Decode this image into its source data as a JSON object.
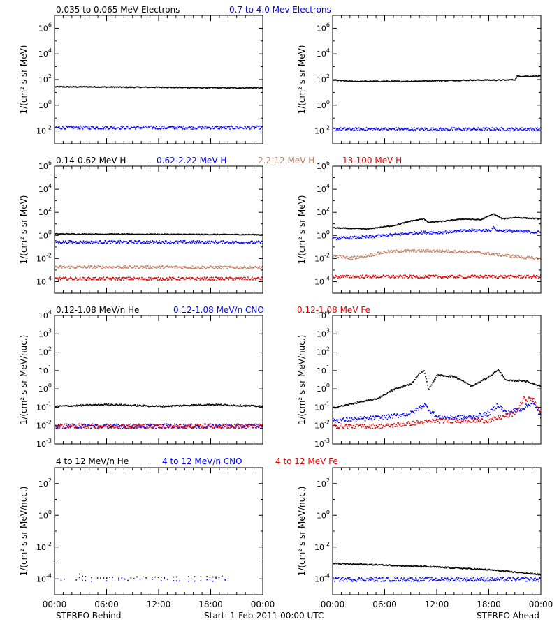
{
  "colors": {
    "black": "#000000",
    "blue": "#0000ff",
    "tan": "#c07d60",
    "red": "#e00000"
  },
  "x_ticks": [
    "00:00",
    "06:00",
    "12:00",
    "18:00",
    "00:00"
  ],
  "footer": {
    "left": "STEREO Behind",
    "center": "Start:  1-Feb-2011 00:00 UTC",
    "right": "STEREO Ahead"
  },
  "rows": [
    {
      "legend": [
        {
          "text": "0.035 to 0.065 MeV Electrons",
          "color": "black"
        },
        {
          "text": "0.7 to 4.0 Mev Electrons",
          "color": "blue"
        }
      ]
    },
    {
      "legend": [
        {
          "text": "0.14-0.62 MeV H",
          "color": "black"
        },
        {
          "text": "0.62-2.22 MeV H",
          "color": "blue"
        },
        {
          "text": "2.2-12 MeV H",
          "color": "tan"
        },
        {
          "text": "13-100 MeV H",
          "color": "red"
        }
      ]
    },
    {
      "legend": [
        {
          "text": "0.12-1.08 MeV/n He",
          "color": "black"
        },
        {
          "text": "0.12-1.08 MeV/n CNO",
          "color": "blue"
        },
        {
          "text": "0.12-1.08 MeV Fe",
          "color": "red"
        }
      ]
    },
    {
      "legend": [
        {
          "text": "4 to 12 MeV/n He",
          "color": "black"
        },
        {
          "text": "4 to 12 MeV/n CNO",
          "color": "blue"
        },
        {
          "text": "4 to 12 MeV Fe",
          "color": "red"
        }
      ]
    }
  ],
  "chart_data": [
    {
      "type": "scatter",
      "panel": "row1-behind",
      "ylabel": "1/(cm² s sr MeV)",
      "yscale": "log",
      "ylim_exp": [
        -3,
        7
      ],
      "ytick_exps": [
        -2,
        0,
        2,
        4,
        6
      ],
      "xlim": [
        0,
        24
      ],
      "series": [
        {
          "name": "0.035 to 0.065 MeV Electrons",
          "color": "black",
          "points": [
            [
              0,
              30
            ],
            [
              4,
              30
            ],
            [
              8,
              28
            ],
            [
              12,
              28
            ],
            [
              16,
              26
            ],
            [
              20,
              25
            ],
            [
              24,
              25
            ]
          ]
        },
        {
          "name": "0.7 to 4.0 Mev Electrons",
          "color": "blue",
          "points": [
            [
              0,
              0.02
            ],
            [
              6,
              0.02
            ],
            [
              12,
              0.02
            ],
            [
              18,
              0.02
            ],
            [
              24,
              0.02
            ]
          ]
        }
      ]
    },
    {
      "type": "scatter",
      "panel": "row1-ahead",
      "ylabel": "1/(cm² s sr MeV)",
      "yscale": "log",
      "ylim_exp": [
        -3,
        7
      ],
      "ytick_exps": [
        -2,
        0,
        2,
        4,
        6
      ],
      "xlim": [
        0,
        24
      ],
      "series": [
        {
          "name": "0.035 to 0.065 MeV Electrons",
          "color": "black",
          "points": [
            [
              0,
              100
            ],
            [
              2,
              80
            ],
            [
              4,
              80
            ],
            [
              8,
              80
            ],
            [
              12,
              90
            ],
            [
              16,
              100
            ],
            [
              20,
              100
            ],
            [
              21,
              110
            ],
            [
              21.2,
              200
            ],
            [
              24,
              200
            ]
          ]
        },
        {
          "name": "0.7 to 4.0 Mev Electrons",
          "color": "blue",
          "points": [
            [
              0,
              0.015
            ],
            [
              6,
              0.015
            ],
            [
              12,
              0.015
            ],
            [
              18,
              0.015
            ],
            [
              24,
              0.015
            ]
          ]
        }
      ]
    },
    {
      "type": "scatter",
      "panel": "row2-behind",
      "ylabel": "1/(cm² s sr MeV)",
      "yscale": "log",
      "ylim_exp": [
        -5,
        6
      ],
      "ytick_exps": [
        -4,
        -2,
        0,
        2,
        4,
        6
      ],
      "xlim": [
        0,
        24
      ],
      "series": [
        {
          "name": "0.14-0.62 MeV H",
          "color": "black",
          "points": [
            [
              0,
              1.5
            ],
            [
              12,
              1.4
            ],
            [
              24,
              1.3
            ]
          ]
        },
        {
          "name": "0.62-2.22 MeV H",
          "color": "blue",
          "points": [
            [
              0,
              0.3
            ],
            [
              12,
              0.3
            ],
            [
              24,
              0.28
            ]
          ]
        },
        {
          "name": "2.2-12 MeV H",
          "color": "tan",
          "points": [
            [
              0,
              0.002
            ],
            [
              12,
              0.002
            ],
            [
              24,
              0.0018
            ]
          ]
        },
        {
          "name": "13-100 MeV H",
          "color": "red",
          "points": [
            [
              0,
              0.0002
            ],
            [
              12,
              0.0002
            ],
            [
              24,
              0.0002
            ]
          ]
        }
      ]
    },
    {
      "type": "scatter",
      "panel": "row2-ahead",
      "ylabel": "1/(cm² s sr MeV)",
      "yscale": "log",
      "ylim_exp": [
        -5,
        6
      ],
      "ytick_exps": [
        -4,
        -2,
        0,
        2,
        4,
        6
      ],
      "xlim": [
        0,
        24
      ],
      "series": [
        {
          "name": "0.14-0.62 MeV H",
          "color": "black",
          "points": [
            [
              0,
              5
            ],
            [
              4,
              4
            ],
            [
              7,
              8
            ],
            [
              9,
              20
            ],
            [
              10.5,
              30
            ],
            [
              11,
              15
            ],
            [
              13,
              20
            ],
            [
              15,
              30
            ],
            [
              17,
              25
            ],
            [
              18.5,
              80
            ],
            [
              19.5,
              30
            ],
            [
              21,
              40
            ],
            [
              24,
              30
            ]
          ]
        },
        {
          "name": "0.62-2.22 MeV H",
          "color": "blue",
          "points": [
            [
              0,
              0.6
            ],
            [
              4,
              0.8
            ],
            [
              8,
              1.5
            ],
            [
              10,
              2
            ],
            [
              12,
              2
            ],
            [
              16,
              3
            ],
            [
              18,
              3
            ],
            [
              18.5,
              5
            ],
            [
              19,
              3
            ],
            [
              24,
              2
            ]
          ]
        },
        {
          "name": "2.2-12 MeV H",
          "color": "tan",
          "points": [
            [
              0,
              0.02
            ],
            [
              2,
              0.012
            ],
            [
              4,
              0.02
            ],
            [
              6,
              0.04
            ],
            [
              8,
              0.05
            ],
            [
              12,
              0.05
            ],
            [
              16,
              0.04
            ],
            [
              20,
              0.02
            ],
            [
              24,
              0.01
            ]
          ]
        },
        {
          "name": "13-100 MeV H",
          "color": "red",
          "points": [
            [
              0,
              0.0003
            ],
            [
              6,
              0.0003
            ],
            [
              12,
              0.0003
            ],
            [
              18,
              0.0003
            ],
            [
              24,
              0.0003
            ]
          ]
        }
      ]
    },
    {
      "type": "scatter",
      "panel": "row3-behind",
      "ylabel": "1/(cm² s sr MeV/nuc.)",
      "yscale": "log",
      "ylim_exp": [
        -3,
        4
      ],
      "ytick_exps": [
        -3,
        -2,
        -1,
        0,
        1,
        2,
        3,
        4
      ],
      "xlim": [
        0,
        24
      ],
      "series": [
        {
          "name": "0.12-1.08 MeV/n He",
          "color": "black",
          "points": [
            [
              0,
              0.12
            ],
            [
              6,
              0.15
            ],
            [
              12,
              0.12
            ],
            [
              18,
              0.15
            ],
            [
              24,
              0.12
            ]
          ]
        },
        {
          "name": "0.12-1.08 MeV/n CNO",
          "color": "blue",
          "points": [
            [
              0,
              0.01
            ],
            [
              24,
              0.01
            ]
          ]
        },
        {
          "name": "0.12-1.08 MeV Fe",
          "color": "red",
          "points": [
            [
              0,
              0.01
            ],
            [
              24,
              0.01
            ]
          ]
        }
      ]
    },
    {
      "type": "scatter",
      "panel": "row3-ahead",
      "ylabel": "1/(cm² s sr MeV/nuc.)",
      "yscale": "log",
      "ylim_exp": [
        -3,
        4
      ],
      "ytick_exps": [
        -3,
        -2,
        -1,
        0,
        1,
        2,
        3,
        4
      ],
      "xlim": [
        0,
        24
      ],
      "series": [
        {
          "name": "0.12-1.08 MeV/n He",
          "color": "black",
          "points": [
            [
              0,
              0.1
            ],
            [
              3,
              0.2
            ],
            [
              5,
              0.3
            ],
            [
              7,
              1
            ],
            [
              9,
              2
            ],
            [
              10,
              8
            ],
            [
              10.5,
              10
            ],
            [
              11,
              1
            ],
            [
              12,
              6
            ],
            [
              14,
              5
            ],
            [
              16,
              1.5
            ],
            [
              18,
              5
            ],
            [
              19,
              12
            ],
            [
              20,
              3
            ],
            [
              22,
              3
            ],
            [
              24,
              1.5
            ]
          ]
        },
        {
          "name": "0.12-1.08 MeV/n CNO",
          "color": "blue",
          "points": [
            [
              0,
              0.02
            ],
            [
              6,
              0.03
            ],
            [
              9,
              0.05
            ],
            [
              10.5,
              0.15
            ],
            [
              12,
              0.03
            ],
            [
              16,
              0.03
            ],
            [
              18,
              0.05
            ],
            [
              19,
              0.15
            ],
            [
              20,
              0.05
            ],
            [
              22,
              0.1
            ],
            [
              23,
              0.2
            ],
            [
              24,
              0.03
            ]
          ]
        },
        {
          "name": "0.12-1.08 MeV Fe",
          "color": "red",
          "points": [
            [
              0,
              0.01
            ],
            [
              6,
              0.01
            ],
            [
              12,
              0.02
            ],
            [
              18,
              0.02
            ],
            [
              21,
              0.05
            ],
            [
              22,
              0.3
            ],
            [
              23,
              0.3
            ],
            [
              24,
              0.05
            ]
          ]
        }
      ]
    },
    {
      "type": "scatter",
      "panel": "row4-behind",
      "ylabel": "1/(cm² s sr MeV/nuc.)",
      "yscale": "log",
      "ylim_exp": [
        -5,
        3
      ],
      "ytick_exps": [
        -4,
        -2,
        0,
        2
      ],
      "xlim": [
        0,
        24
      ],
      "series": [
        {
          "name": "4 to 12 MeV/n He",
          "color": "black",
          "points": [
            [
              2.8,
              0.0002
            ],
            [
              4,
              0.00012
            ],
            [
              16,
              0.00015
            ],
            [
              19.5,
              0.00015
            ]
          ]
        },
        {
          "name": "4 to 12 MeV/n CNO",
          "color": "blue",
          "points": [
            [
              0,
              0.0001
            ],
            [
              3,
              0.0001
            ],
            [
              10,
              0.0001
            ],
            [
              20,
              0.0001
            ]
          ]
        }
      ]
    },
    {
      "type": "scatter",
      "panel": "row4-ahead",
      "ylabel": "1/(cm² s sr MeV/nuc.)",
      "yscale": "log",
      "ylim_exp": [
        -5,
        3
      ],
      "ytick_exps": [
        -4,
        -2,
        0,
        2
      ],
      "xlim": [
        0,
        24
      ],
      "series": [
        {
          "name": "4 to 12 MeV/n He",
          "color": "black",
          "points": [
            [
              0,
              0.001
            ],
            [
              6,
              0.0008
            ],
            [
              12,
              0.0006
            ],
            [
              18,
              0.0004
            ],
            [
              24,
              0.0002
            ]
          ]
        },
        {
          "name": "4 to 12 MeV/n CNO",
          "color": "blue",
          "points": [
            [
              0,
              0.0001
            ],
            [
              12,
              0.0001
            ],
            [
              24,
              0.0001
            ]
          ]
        }
      ]
    }
  ]
}
